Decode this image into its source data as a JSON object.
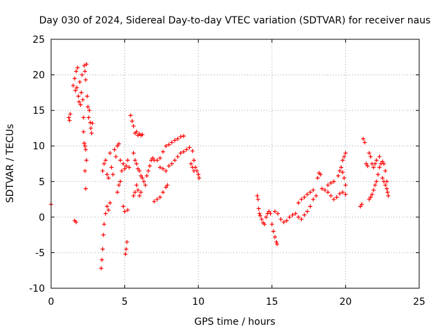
{
  "chart_data": {
    "type": "scatter",
    "title": "Day 030 of 2024, Sidereal Day-to-day VTEC variation (SDTVAR) for receiver naus",
    "xlabel": "GPS time / hours",
    "ylabel": "SDTVAR / TECUs",
    "xlim": [
      0,
      25
    ],
    "ylim": [
      -10,
      25
    ],
    "xticks": [
      0,
      5,
      10,
      15,
      20,
      25
    ],
    "yticks": [
      -10,
      -5,
      0,
      5,
      10,
      15,
      20,
      25
    ],
    "grid": true,
    "marker": "+",
    "color": "#ff0000",
    "series": [
      {
        "name": "SDTVAR",
        "points": [
          [
            0.0,
            1.8
          ],
          [
            1.2,
            14.0
          ],
          [
            1.25,
            13.6
          ],
          [
            1.3,
            14.5
          ],
          [
            1.6,
            -0.5
          ],
          [
            1.7,
            -0.7
          ],
          [
            1.5,
            18.5
          ],
          [
            1.6,
            19.5
          ],
          [
            1.65,
            17.8
          ],
          [
            1.7,
            20.5
          ],
          [
            1.75,
            18.2
          ],
          [
            1.8,
            21.0
          ],
          [
            1.85,
            17.0
          ],
          [
            1.9,
            16.2
          ],
          [
            1.95,
            19.0
          ],
          [
            2.0,
            15.8
          ],
          [
            2.05,
            17.5
          ],
          [
            2.1,
            20.0
          ],
          [
            2.15,
            16.5
          ],
          [
            2.2,
            14.0
          ],
          [
            2.25,
            21.3
          ],
          [
            2.3,
            20.5
          ],
          [
            2.35,
            19.3
          ],
          [
            2.4,
            21.5
          ],
          [
            2.45,
            17.0
          ],
          [
            2.5,
            15.5
          ],
          [
            2.55,
            14.0
          ],
          [
            2.6,
            15.0
          ],
          [
            2.65,
            13.3
          ],
          [
            2.7,
            12.5
          ],
          [
            2.75,
            11.8
          ],
          [
            2.8,
            13.2
          ],
          [
            2.2,
            12.0
          ],
          [
            2.25,
            10.4
          ],
          [
            2.3,
            10.0
          ],
          [
            2.35,
            9.5
          ],
          [
            2.4,
            8.0
          ],
          [
            2.3,
            6.5
          ],
          [
            2.35,
            4.0
          ],
          [
            3.4,
            -7.2
          ],
          [
            3.45,
            -6.0
          ],
          [
            3.5,
            -4.5
          ],
          [
            3.55,
            -2.5
          ],
          [
            3.6,
            -1.0
          ],
          [
            3.7,
            0.5
          ],
          [
            3.8,
            1.5
          ],
          [
            3.9,
            1.0
          ],
          [
            4.0,
            2.0
          ],
          [
            3.5,
            6.5
          ],
          [
            3.6,
            7.5
          ],
          [
            3.7,
            8.0
          ],
          [
            3.8,
            6.0
          ],
          [
            3.9,
            5.5
          ],
          [
            4.0,
            9.0
          ],
          [
            4.1,
            7.0
          ],
          [
            4.2,
            6.0
          ],
          [
            4.3,
            9.5
          ],
          [
            4.4,
            8.5
          ],
          [
            4.5,
            10.0
          ],
          [
            4.6,
            10.3
          ],
          [
            4.7,
            8.0
          ],
          [
            4.8,
            6.5
          ],
          [
            4.9,
            7.5
          ],
          [
            5.0,
            6.8
          ],
          [
            5.1,
            7.2
          ],
          [
            5.2,
            8.0
          ],
          [
            5.3,
            7.0
          ],
          [
            4.9,
            1.5
          ],
          [
            5.0,
            0.8
          ],
          [
            5.05,
            -5.2
          ],
          [
            5.1,
            -4.5
          ],
          [
            5.15,
            -3.5
          ],
          [
            5.2,
            1.0
          ],
          [
            4.5,
            3.5
          ],
          [
            4.6,
            4.5
          ],
          [
            4.7,
            5.0
          ],
          [
            5.4,
            14.3
          ],
          [
            5.5,
            13.5
          ],
          [
            5.6,
            12.8
          ],
          [
            5.7,
            11.8
          ],
          [
            5.8,
            12.0
          ],
          [
            5.9,
            11.5
          ],
          [
            6.0,
            11.7
          ],
          [
            6.1,
            11.5
          ],
          [
            6.2,
            11.6
          ],
          [
            5.6,
            9.0
          ],
          [
            5.7,
            8.0
          ],
          [
            5.8,
            7.5
          ],
          [
            5.9,
            6.8
          ],
          [
            6.0,
            6.5
          ],
          [
            6.1,
            5.8
          ],
          [
            6.2,
            5.5
          ],
          [
            6.3,
            5.0
          ],
          [
            6.4,
            4.5
          ],
          [
            6.5,
            5.8
          ],
          [
            6.6,
            6.5
          ],
          [
            6.7,
            7.2
          ],
          [
            6.8,
            8.0
          ],
          [
            6.9,
            8.3
          ],
          [
            5.6,
            3.0
          ],
          [
            5.7,
            3.5
          ],
          [
            5.8,
            4.5
          ],
          [
            5.9,
            3.8
          ],
          [
            6.0,
            3.0
          ],
          [
            6.1,
            3.5
          ],
          [
            7.0,
            2.2
          ],
          [
            7.2,
            2.5
          ],
          [
            7.4,
            2.8
          ],
          [
            7.6,
            3.5
          ],
          [
            7.8,
            4.2
          ],
          [
            7.9,
            4.5
          ],
          [
            7.0,
            8.0
          ],
          [
            7.2,
            8.0
          ],
          [
            7.4,
            8.3
          ],
          [
            7.6,
            9.2
          ],
          [
            7.8,
            10.0
          ],
          [
            8.0,
            10.2
          ],
          [
            8.2,
            10.5
          ],
          [
            8.4,
            10.8
          ],
          [
            8.6,
            11.0
          ],
          [
            8.8,
            11.3
          ],
          [
            9.0,
            11.4
          ],
          [
            7.4,
            7.0
          ],
          [
            7.6,
            6.8
          ],
          [
            7.8,
            6.5
          ],
          [
            8.0,
            7.2
          ],
          [
            8.2,
            7.5
          ],
          [
            8.4,
            8.0
          ],
          [
            8.6,
            8.5
          ],
          [
            8.8,
            9.0
          ],
          [
            9.0,
            9.2
          ],
          [
            9.2,
            9.5
          ],
          [
            9.4,
            9.8
          ],
          [
            9.6,
            9.3
          ],
          [
            9.7,
            8.0
          ],
          [
            9.8,
            7.0
          ],
          [
            9.9,
            6.5
          ],
          [
            10.0,
            6.0
          ],
          [
            10.05,
            5.5
          ],
          [
            9.5,
            7.5
          ],
          [
            9.6,
            7.0
          ],
          [
            9.7,
            6.5
          ],
          [
            14.0,
            3.0
          ],
          [
            14.05,
            2.5
          ],
          [
            14.1,
            1.2
          ],
          [
            14.15,
            0.5
          ],
          [
            14.2,
            0.2
          ],
          [
            14.3,
            -0.3
          ],
          [
            14.4,
            -0.8
          ],
          [
            14.5,
            -1.0
          ],
          [
            14.6,
            0.0
          ],
          [
            14.7,
            0.5
          ],
          [
            14.8,
            0.8
          ],
          [
            14.9,
            0.5
          ],
          [
            15.0,
            -1.0
          ],
          [
            15.1,
            -2.0
          ],
          [
            15.2,
            -2.8
          ],
          [
            15.3,
            -3.5
          ],
          [
            15.35,
            -3.8
          ],
          [
            15.2,
            0.8
          ],
          [
            15.4,
            0.5
          ],
          [
            15.6,
            -0.3
          ],
          [
            15.8,
            -0.7
          ],
          [
            16.0,
            -0.5
          ],
          [
            16.2,
            0.0
          ],
          [
            16.4,
            0.3
          ],
          [
            16.6,
            0.5
          ],
          [
            16.8,
            0.0
          ],
          [
            17.0,
            -0.3
          ],
          [
            17.2,
            0.3
          ],
          [
            16.8,
            2.0
          ],
          [
            17.0,
            2.5
          ],
          [
            17.2,
            2.8
          ],
          [
            17.4,
            3.2
          ],
          [
            17.6,
            3.5
          ],
          [
            17.8,
            3.8
          ],
          [
            17.4,
            0.8
          ],
          [
            17.6,
            1.5
          ],
          [
            17.8,
            2.5
          ],
          [
            18.0,
            3.0
          ],
          [
            18.1,
            5.5
          ],
          [
            18.2,
            6.2
          ],
          [
            18.3,
            6.0
          ],
          [
            18.4,
            4.0
          ],
          [
            18.6,
            3.8
          ],
          [
            18.8,
            4.5
          ],
          [
            19.0,
            4.8
          ],
          [
            19.2,
            5.0
          ],
          [
            18.8,
            3.5
          ],
          [
            19.0,
            3.0
          ],
          [
            19.2,
            2.5
          ],
          [
            19.4,
            2.8
          ],
          [
            19.6,
            3.3
          ],
          [
            19.8,
            3.5
          ],
          [
            20.0,
            3.2
          ],
          [
            19.5,
            5.8
          ],
          [
            19.6,
            6.5
          ],
          [
            19.7,
            7.0
          ],
          [
            19.8,
            6.3
          ],
          [
            19.9,
            5.5
          ],
          [
            20.0,
            4.5
          ],
          [
            19.8,
            8.0
          ],
          [
            19.9,
            8.5
          ],
          [
            20.0,
            9.0
          ],
          [
            21.0,
            1.5
          ],
          [
            21.1,
            1.8
          ],
          [
            21.2,
            11.0
          ],
          [
            21.3,
            10.5
          ],
          [
            21.4,
            7.5
          ],
          [
            21.5,
            7.2
          ],
          [
            21.6,
            2.5
          ],
          [
            21.7,
            2.8
          ],
          [
            21.8,
            3.2
          ],
          [
            21.9,
            3.8
          ],
          [
            22.0,
            4.5
          ],
          [
            22.1,
            5.0
          ],
          [
            22.2,
            6.0
          ],
          [
            22.3,
            7.0
          ],
          [
            22.4,
            7.5
          ],
          [
            22.5,
            7.8
          ],
          [
            22.6,
            7.5
          ],
          [
            22.7,
            6.5
          ],
          [
            22.8,
            5.0
          ],
          [
            22.85,
            3.5
          ],
          [
            22.9,
            3.0
          ],
          [
            21.6,
            9.0
          ],
          [
            21.7,
            8.5
          ],
          [
            21.8,
            7.5
          ],
          [
            21.9,
            7.0
          ],
          [
            22.0,
            7.5
          ],
          [
            22.1,
            8.0
          ],
          [
            22.3,
            8.5
          ],
          [
            22.5,
            5.5
          ],
          [
            22.6,
            5.0
          ],
          [
            22.7,
            4.5
          ],
          [
            22.8,
            4.0
          ]
        ]
      }
    ]
  }
}
